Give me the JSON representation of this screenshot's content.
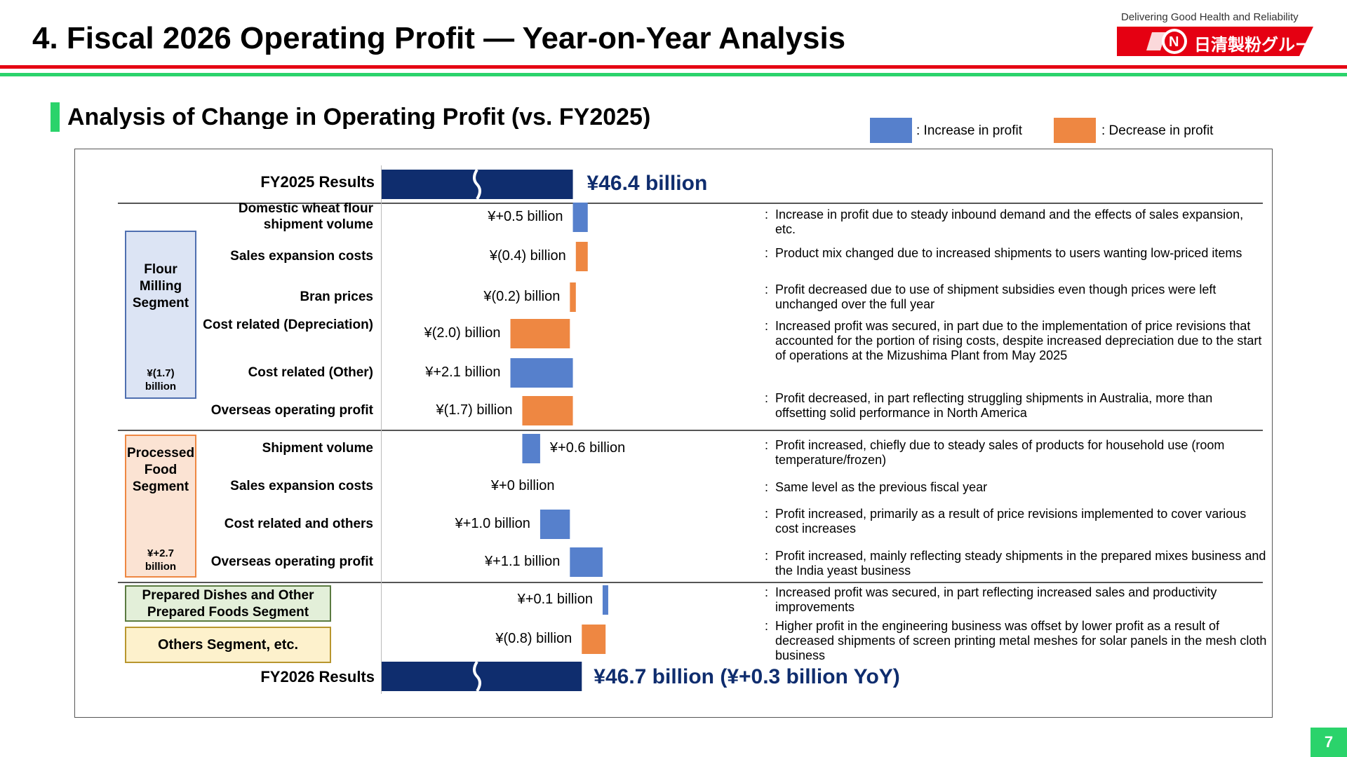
{
  "header": {
    "title": "4. Fiscal 2026 Operating Profit — Year-on-Year Analysis",
    "tagline": "Delivering Good Health and Reliability",
    "logo_text": "日清製粉グループ",
    "logo_color": "#e50012"
  },
  "section_title": "Analysis of Change in Operating Profit (vs. FY2025)",
  "legend": {
    "increase_label": ": Increase in profit",
    "decrease_label": ": Decrease in profit",
    "increase_color": "#5680cc",
    "decrease_color": "#ee8742"
  },
  "segments": {
    "flour": {
      "name": "Flour Milling Segment",
      "total": "¥(1.7) billion",
      "color": "#dce4f4",
      "border": "#4f6fb0"
    },
    "processed": {
      "name": "Processed Food Segment",
      "total": "¥+2.7 billion",
      "color": "#fbe3d3",
      "border": "#ee8742"
    },
    "prepared": {
      "name": "Prepared Dishes and Other Prepared Foods Segment",
      "color": "#e3efd9",
      "border": "#5a7a40"
    },
    "others": {
      "name": "Others Segment, etc.",
      "color": "#fdf1cc",
      "border": "#b8962e"
    }
  },
  "chart_data": {
    "type": "waterfall",
    "unit": "¥ billion",
    "start": {
      "label": "FY2025 Results",
      "value": 46.4,
      "text": "¥46.4 billion"
    },
    "end": {
      "label": "FY2026 Results",
      "value": 46.7,
      "text": "¥46.7 billion (¥+0.3 billion YoY)"
    },
    "items": [
      {
        "segment": "flour",
        "label": "Domestic wheat flour shipment volume",
        "value": 0.5,
        "text": "¥+0.5 billion",
        "comment": "Increase in profit due to steady inbound demand and the effects of sales expansion, etc."
      },
      {
        "segment": "flour",
        "label": "Sales expansion costs",
        "value": -0.4,
        "text": "¥(0.4) billion",
        "comment": "Product mix changed due to increased shipments to users wanting low-priced items"
      },
      {
        "segment": "flour",
        "label": "Bran prices",
        "value": -0.2,
        "text": "¥(0.2) billion",
        "comment": "Profit decreased due to use of shipment subsidies even though prices were left unchanged over the full year"
      },
      {
        "segment": "flour",
        "label": "Cost related (Depreciation)",
        "value": -2.0,
        "text": "¥(2.0) billion",
        "comment": "Increased profit was secured, in part due to the implementation of price revisions that accounted for the portion of rising costs, despite increased depreciation due to the start of operations at the Mizushima Plant from May 2025"
      },
      {
        "segment": "flour",
        "label": "Cost related (Other)",
        "value": 2.1,
        "text": "¥+2.1 billion",
        "comment": ""
      },
      {
        "segment": "flour",
        "label": "Overseas operating profit",
        "value": -1.7,
        "text": "¥(1.7) billion",
        "comment": "Profit decreased, in part reflecting struggling shipments in Australia, more than offsetting solid performance in North America"
      },
      {
        "segment": "processed",
        "label": "Shipment volume",
        "value": 0.6,
        "text": "¥+0.6 billion",
        "comment": "Profit increased, chiefly due to steady sales of products for household use (room temperature/frozen)"
      },
      {
        "segment": "processed",
        "label": "Sales expansion costs",
        "value": 0.0,
        "text": "¥+0 billion",
        "comment": "Same level as the previous fiscal year"
      },
      {
        "segment": "processed",
        "label": "Cost related and others",
        "value": 1.0,
        "text": "¥+1.0 billion",
        "comment": "Profit increased, primarily as a result of price revisions implemented to cover various cost increases"
      },
      {
        "segment": "processed",
        "label": "Overseas operating profit",
        "value": 1.1,
        "text": "¥+1.1 billion",
        "comment": "Profit increased, mainly reflecting steady shipments in the prepared mixes business and the India yeast business"
      },
      {
        "segment": "prepared",
        "label": "",
        "value": 0.1,
        "text": "¥+0.1 billion",
        "comment": "Increased profit was secured, in part reflecting increased sales and productivity improvements"
      },
      {
        "segment": "others",
        "label": "",
        "value": -0.8,
        "text": "¥(0.8) billion",
        "comment": "Higher profit in the engineering business was offset by lower profit as a result of decreased shipments of screen printing metal meshes for solar panels in the mesh cloth business"
      }
    ]
  },
  "page_number": "7"
}
